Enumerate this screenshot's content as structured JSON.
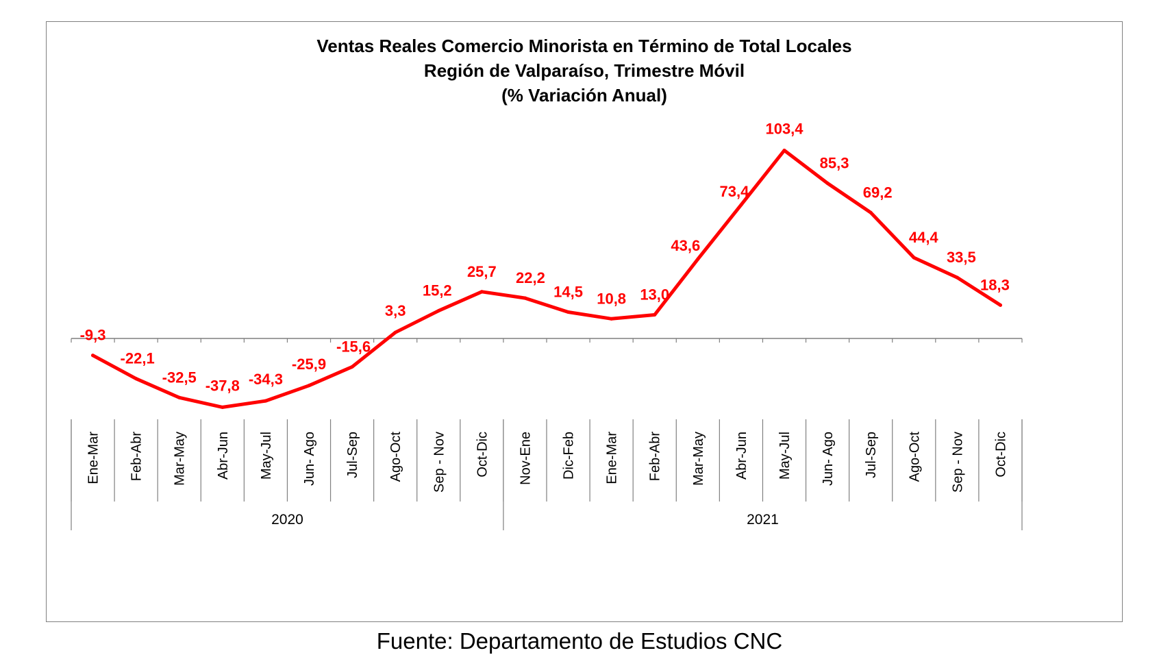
{
  "source": "Fuente: Departamento de Estudios CNC",
  "chart_data": {
    "type": "line",
    "title": [
      "Ventas Reales Comercio Minorista  en Término de Total Locales",
      "Región de Valparaíso, Trimestre Móvil",
      "(% Variación Anual)"
    ],
    "categories": [
      "Ene-Mar",
      "Feb-Abr",
      "Mar-May",
      "Abr-Jun",
      "May-Jul",
      "Jun- Ago",
      "Jul-Sep",
      "Ago-Oct",
      "Sep - Nov",
      "Oct-Dic",
      "Nov-Ene",
      "Dic-Feb",
      "Ene-Mar",
      "Feb-Abr",
      "Mar-May",
      "Abr-Jun",
      "May-Jul",
      "Jun- Ago",
      "Jul-Sep",
      "Ago-Oct",
      "Sep - Nov",
      "Oct-Dic"
    ],
    "groups": [
      {
        "label": "2020",
        "count": 10
      },
      {
        "label": "2021",
        "count": 12
      }
    ],
    "series": [
      {
        "color": "#ff0000",
        "values": [
          -9.3,
          -22.1,
          -32.5,
          -37.8,
          -34.3,
          -25.9,
          -15.6,
          3.3,
          15.2,
          25.7,
          22.2,
          14.5,
          10.8,
          13.0,
          43.6,
          73.4,
          103.4,
          85.3,
          69.2,
          44.4,
          33.5,
          18.3
        ],
        "labels": [
          "-9,3",
          "-22,1",
          "-32,5",
          "-37,8",
          "-34,3",
          "-25,9",
          "-15,6",
          "3,3",
          "15,2",
          "25,7",
          "22,2",
          "14,5",
          "10,8",
          "13,0",
          "43,6",
          "73,4",
          "103,4",
          "85,3",
          "69,2",
          "44,4",
          "33,5",
          "18,3"
        ]
      }
    ],
    "data_labels": true,
    "grid": false,
    "legend": "none"
  }
}
